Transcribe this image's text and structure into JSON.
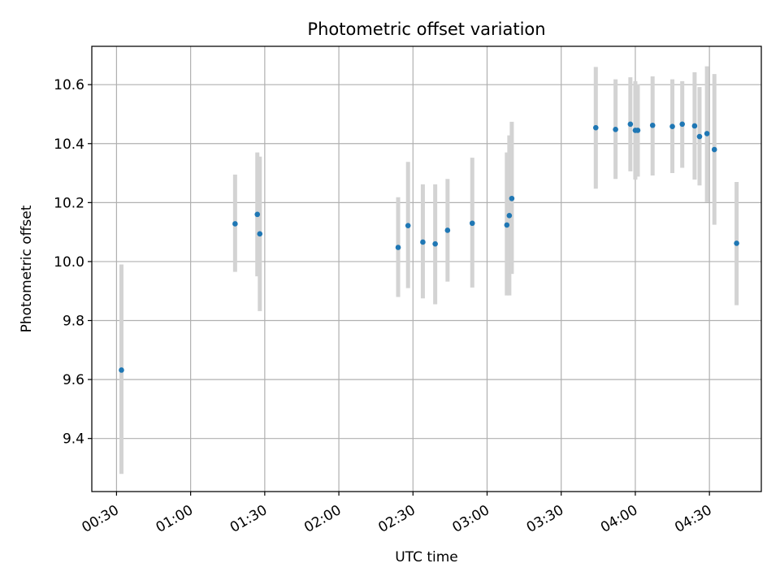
{
  "chart_data": {
    "type": "scatter",
    "title": "Photometric offset variation",
    "xlabel": "UTC time",
    "ylabel": "Photometric offset",
    "x_unit": "UTC time (HH:MM)",
    "xlim": [
      "00:20",
      "04:51"
    ],
    "ylim": [
      9.22,
      10.73
    ],
    "x_ticks": [
      "00:30",
      "01:00",
      "01:30",
      "02:00",
      "02:30",
      "03:00",
      "03:30",
      "04:00",
      "04:30"
    ],
    "y_ticks": [
      9.4,
      9.6,
      9.8,
      10.0,
      10.2,
      10.4,
      10.6
    ],
    "grid": true,
    "marker_color": "#1f77b4",
    "errorbar_color": "#d3d3d3",
    "points": [
      {
        "time": "00:32",
        "y": 9.632,
        "ylo": 9.28,
        "yhi": 9.99
      },
      {
        "time": "01:18",
        "y": 10.128,
        "ylo": 9.965,
        "yhi": 10.295
      },
      {
        "time": "01:27",
        "y": 10.16,
        "ylo": 9.95,
        "yhi": 10.37
      },
      {
        "time": "01:28",
        "y": 10.094,
        "ylo": 9.832,
        "yhi": 10.356
      },
      {
        "time": "02:24",
        "y": 10.048,
        "ylo": 9.88,
        "yhi": 10.218
      },
      {
        "time": "02:28",
        "y": 10.122,
        "ylo": 9.91,
        "yhi": 10.338
      },
      {
        "time": "02:34",
        "y": 10.066,
        "ylo": 9.875,
        "yhi": 10.262
      },
      {
        "time": "02:39",
        "y": 10.06,
        "ylo": 9.855,
        "yhi": 10.262
      },
      {
        "time": "02:44",
        "y": 10.106,
        "ylo": 9.932,
        "yhi": 10.28
      },
      {
        "time": "02:54",
        "y": 10.13,
        "ylo": 9.912,
        "yhi": 10.352
      },
      {
        "time": "03:08",
        "y": 10.124,
        "ylo": 9.885,
        "yhi": 10.37
      },
      {
        "time": "03:09",
        "y": 10.156,
        "ylo": 9.885,
        "yhi": 10.428
      },
      {
        "time": "03:10",
        "y": 10.214,
        "ylo": 9.958,
        "yhi": 10.474
      },
      {
        "time": "03:44",
        "y": 10.454,
        "ylo": 10.247,
        "yhi": 10.66
      },
      {
        "time": "03:52",
        "y": 10.448,
        "ylo": 10.28,
        "yhi": 10.618
      },
      {
        "time": "03:58",
        "y": 10.466,
        "ylo": 10.306,
        "yhi": 10.625
      },
      {
        "time": "04:00",
        "y": 10.445,
        "ylo": 10.278,
        "yhi": 10.612
      },
      {
        "time": "04:01",
        "y": 10.445,
        "ylo": 10.288,
        "yhi": 10.602
      },
      {
        "time": "04:07",
        "y": 10.462,
        "ylo": 10.292,
        "yhi": 10.628
      },
      {
        "time": "04:15",
        "y": 10.458,
        "ylo": 10.3,
        "yhi": 10.618
      },
      {
        "time": "04:19",
        "y": 10.466,
        "ylo": 10.318,
        "yhi": 10.612
      },
      {
        "time": "04:24",
        "y": 10.46,
        "ylo": 10.278,
        "yhi": 10.642
      },
      {
        "time": "04:26",
        "y": 10.424,
        "ylo": 10.258,
        "yhi": 10.592
      },
      {
        "time": "04:29",
        "y": 10.434,
        "ylo": 10.202,
        "yhi": 10.662
      },
      {
        "time": "04:32",
        "y": 10.38,
        "ylo": 10.125,
        "yhi": 10.636
      },
      {
        "time": "04:41",
        "y": 10.062,
        "ylo": 9.852,
        "yhi": 10.27
      }
    ]
  }
}
